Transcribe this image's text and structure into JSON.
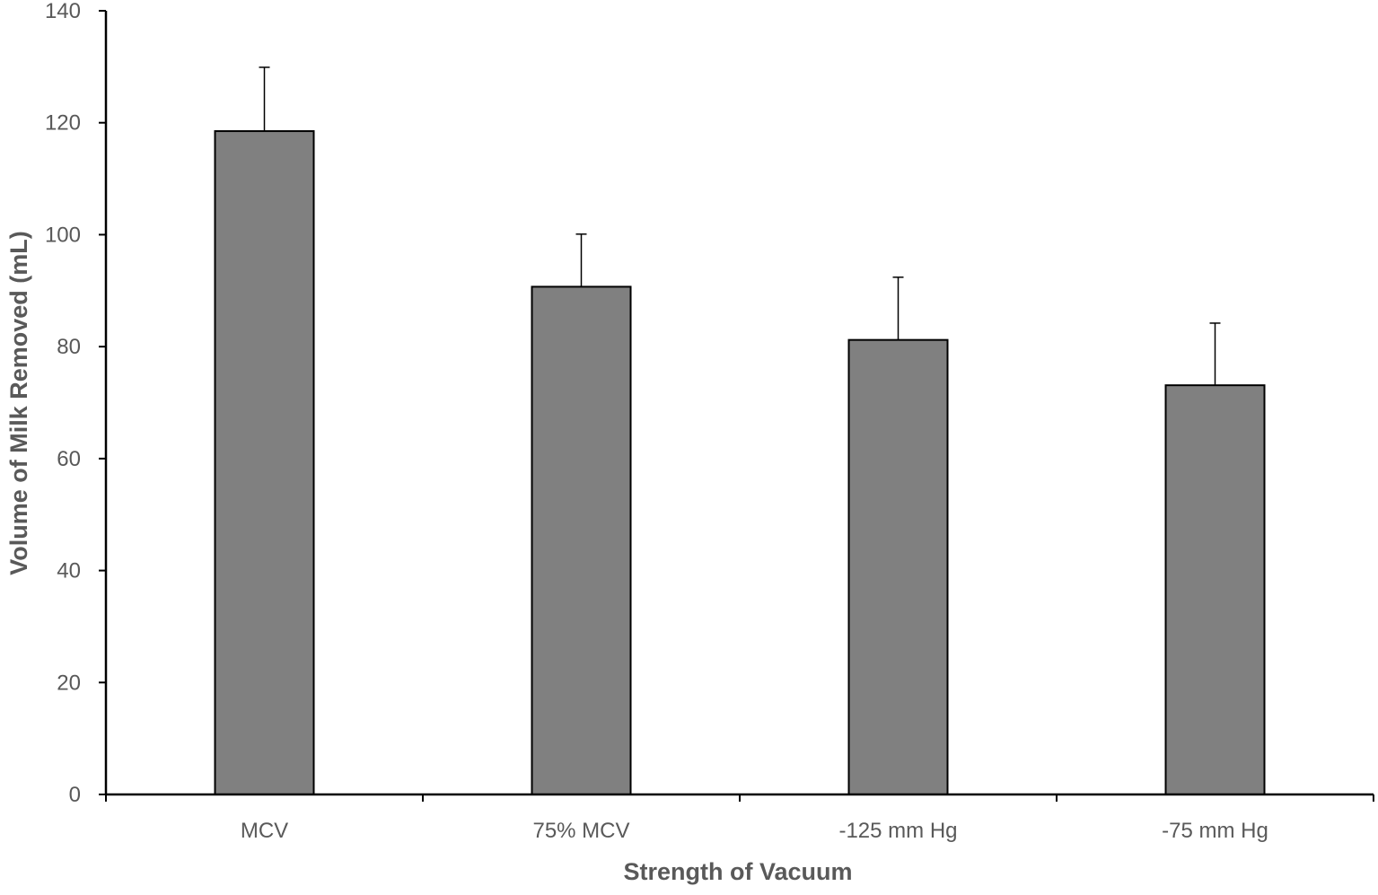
{
  "chart_data": {
    "type": "bar",
    "title": "",
    "xlabel": "Strength of Vacuum",
    "ylabel": "Volume of Milk Removed (mL)",
    "categories": [
      "MCV",
      "75% MCV",
      "-125 mm Hg",
      "-75 mm Hg"
    ],
    "series": [
      {
        "values": [
          118.5,
          90.7,
          81.2,
          73.1
        ],
        "error_plus": [
          11.4,
          9.4,
          11.2,
          11.1
        ],
        "color": "#808080"
      }
    ],
    "ylim": [
      0,
      140
    ],
    "yticks": [
      "0",
      "20",
      "40",
      "60",
      "80",
      "100",
      "120",
      "140"
    ],
    "grid": false,
    "legend": "none",
    "colors": {
      "bar_fill": "#808080",
      "bar_stroke": "#000000",
      "axis": "#000000",
      "text": "#595959"
    }
  }
}
